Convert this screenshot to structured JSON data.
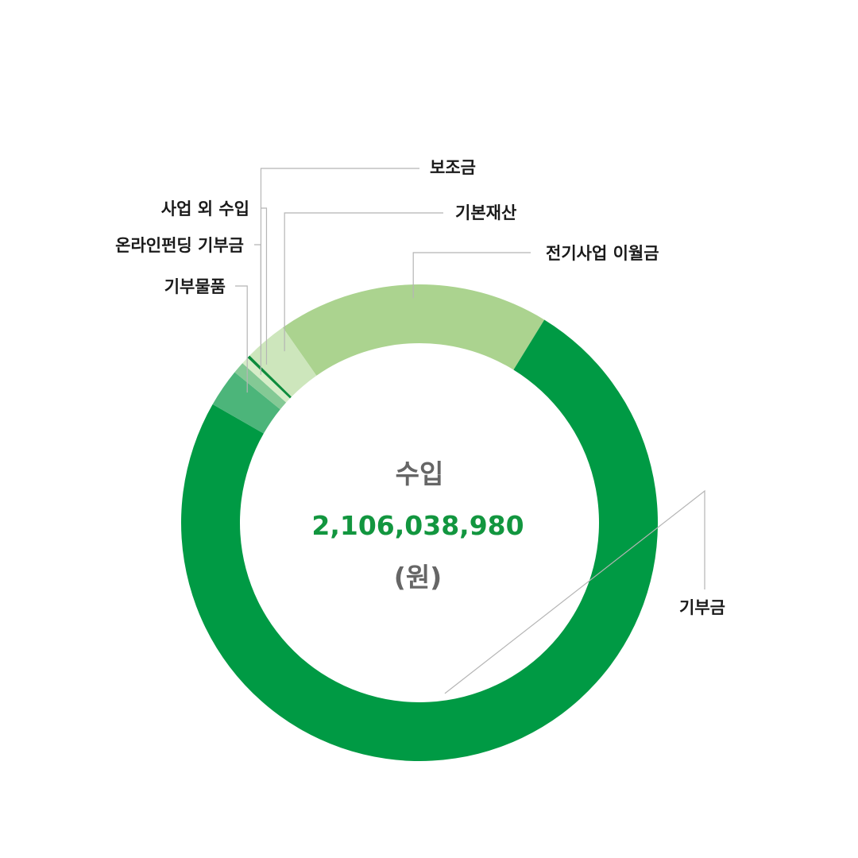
{
  "chart_data": {
    "type": "pie",
    "style": "donut",
    "center": {
      "title": "수입",
      "value": "2,106,038,980",
      "unit": "(원)",
      "value_color": "#12963f"
    },
    "slices": [
      {
        "label": "전기사업 이월금",
        "value": 18.5,
        "color": "#abd38f"
      },
      {
        "label": "기부금",
        "value": 74.5,
        "color": "#009a44"
      },
      {
        "label": "기부물품",
        "value": 2.6,
        "color": "#4cb57a"
      },
      {
        "label": "온라인펀딩 기부금",
        "value": 0.8,
        "color": "#84c995"
      },
      {
        "label": "사업 외 수입",
        "value": 0.5,
        "color": "#d6edc8"
      },
      {
        "label": "보조금",
        "value": 0.2,
        "color": "#0d8c3c"
      },
      {
        "label": "기본재산",
        "value": 2.9,
        "color": "#cde6bc"
      }
    ]
  }
}
